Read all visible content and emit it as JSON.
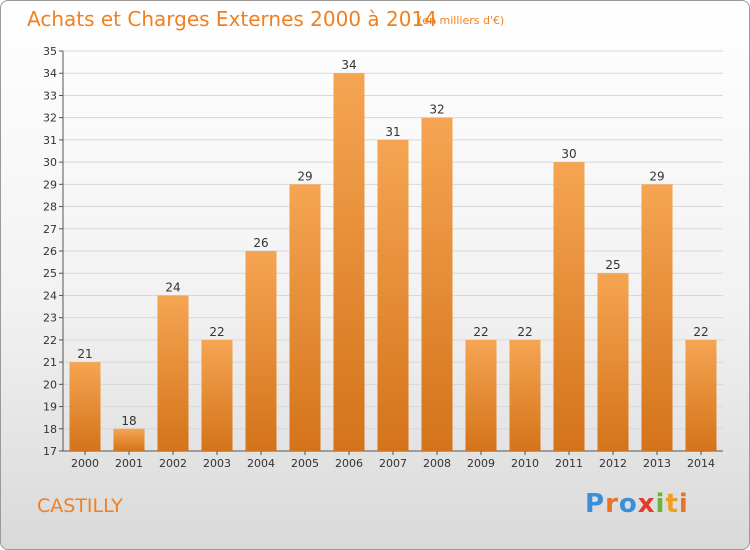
{
  "header": {
    "title": "Achats et Charges Externes 2000 à 2014",
    "subtitle": "(en milliers d'€)"
  },
  "footer": {
    "city": "CASTILLY",
    "logo_text": "Proxiti"
  },
  "colors": {
    "bar_top": "#f5a552",
    "bar_bottom": "#d4731a",
    "title": "#f08020",
    "logo_letters": [
      "#3a8fd6",
      "#e8732a",
      "#3a8fd6",
      "#e23b2e",
      "#6ab43a",
      "#f0a020",
      "#e8732a"
    ]
  },
  "chart_data": {
    "type": "bar",
    "categories": [
      "2000",
      "2001",
      "2002",
      "2003",
      "2004",
      "2005",
      "2006",
      "2007",
      "2008",
      "2009",
      "2010",
      "2011",
      "2012",
      "2013",
      "2014"
    ],
    "values": [
      21,
      18,
      24,
      22,
      26,
      29,
      34,
      31,
      32,
      22,
      22,
      30,
      25,
      29,
      22
    ],
    "title": "Achats et Charges Externes 2000 à 2014",
    "ylim": [
      17,
      35
    ],
    "yticks": [
      17,
      18,
      19,
      20,
      21,
      22,
      23,
      24,
      25,
      26,
      27,
      28,
      29,
      30,
      31,
      32,
      33,
      34,
      35
    ],
    "grid": true,
    "data_labels": true
  }
}
